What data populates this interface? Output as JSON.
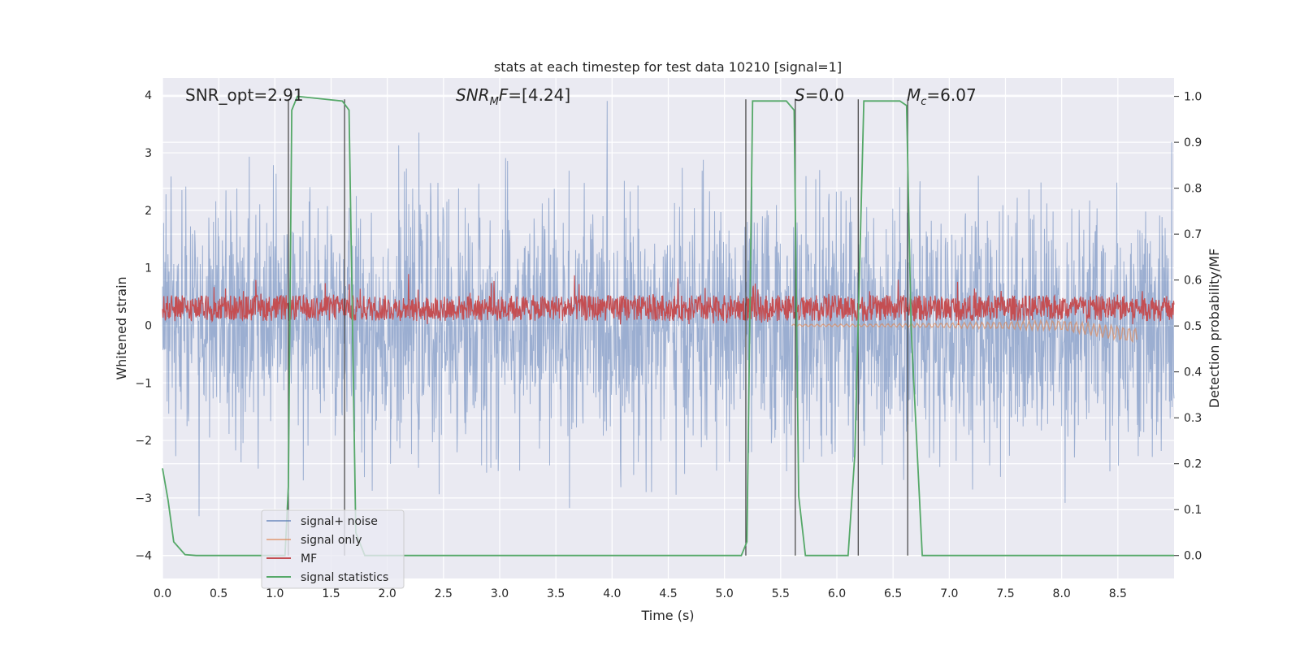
{
  "chart_data": {
    "type": "line",
    "title": "stats at each timestep for test data 10210 [signal=1]",
    "xlabel": "Time (s)",
    "ylabel": "Whitened strain",
    "ylabel_right": "Detection probability/MF",
    "xlim": [
      0.0,
      9.0
    ],
    "ylim": [
      -4.4,
      4.3
    ],
    "ylim_right": [
      -0.05,
      1.04
    ],
    "x_ticks": [
      "0.0",
      "0.5",
      "1.0",
      "1.5",
      "2.0",
      "2.5",
      "3.0",
      "3.5",
      "4.0",
      "4.5",
      "5.0",
      "5.5",
      "6.0",
      "6.5",
      "7.0",
      "7.5",
      "8.0",
      "8.5"
    ],
    "y_ticks": [
      "−4",
      "−3",
      "−2",
      "−1",
      "0",
      "1",
      "2",
      "3",
      "4"
    ],
    "y_ticks_right": [
      "0.0",
      "0.1",
      "0.2",
      "0.3",
      "0.4",
      "0.5",
      "0.6",
      "0.7",
      "0.8",
      "0.9",
      "1.0"
    ],
    "grid": true,
    "legend_position": "lower-left",
    "annotations": {
      "snr_opt": "SNR_opt=2.91",
      "snr_mf": "=[4.24]",
      "s": "=0.0",
      "mc": "=6.07"
    },
    "series": [
      {
        "name": "signal+ noise",
        "color": "#4c72b0",
        "description_range": [
          -3.5,
          3.9
        ],
        "values": "dense noise between about −3.5 and 3.9"
      },
      {
        "name": "signal only",
        "color": "#dd8452",
        "x": [
          8.0,
          8.3,
          8.6,
          8.67
        ],
        "values": [
          0.0,
          -0.05,
          -0.15,
          -0.25
        ]
      },
      {
        "name": "MF",
        "color": "#c44e52",
        "baseline": 0.3,
        "spread": [
          0.0,
          0.8
        ]
      },
      {
        "name": "signal statistics",
        "color": "#55a868",
        "x": [
          0.0,
          0.05,
          0.1,
          0.2,
          0.3,
          1.09,
          1.12,
          1.15,
          1.2,
          1.6,
          1.66,
          1.72,
          1.8,
          2.0,
          5.15,
          5.2,
          5.25,
          5.55,
          5.62,
          5.66,
          5.72,
          5.8,
          6.1,
          6.16,
          6.24,
          6.56,
          6.62,
          6.66,
          6.76,
          9.0
        ],
        "values": [
          0.19,
          0.12,
          0.03,
          0.002,
          0.0,
          0.0,
          0.15,
          0.97,
          1.0,
          0.99,
          0.97,
          0.05,
          0.0,
          0.0,
          0.0,
          0.03,
          0.99,
          0.99,
          0.97,
          0.13,
          0.0,
          0.0,
          0.0,
          0.22,
          0.99,
          0.99,
          0.98,
          0.5,
          0.0,
          0.0
        ]
      }
    ],
    "vertical_markers_x": [
      1.12,
      1.62,
      5.19,
      5.63,
      6.19,
      6.63
    ]
  }
}
